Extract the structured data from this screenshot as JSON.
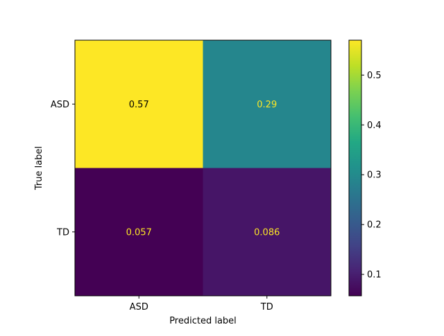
{
  "chart_data": {
    "type": "heatmap",
    "title": "",
    "xlabel": "Predicted label",
    "ylabel": "True label",
    "x_categories": [
      "ASD",
      "TD"
    ],
    "y_categories": [
      "ASD",
      "TD"
    ],
    "values": [
      [
        0.57,
        0.29
      ],
      [
        0.057,
        0.086
      ]
    ],
    "value_labels": [
      [
        "0.57",
        "0.29"
      ],
      [
        "0.057",
        "0.086"
      ]
    ],
    "colormap": "viridis",
    "colorbar": {
      "vmin": 0.057,
      "vmax": 0.57,
      "ticks": [
        0.1,
        0.2,
        0.3,
        0.4,
        0.5
      ],
      "tick_labels": [
        "0.1",
        "0.2",
        "0.3",
        "0.4",
        "0.5"
      ]
    },
    "text_colors": {
      "on_dark": "#fde725",
      "on_light": "#000000"
    }
  }
}
